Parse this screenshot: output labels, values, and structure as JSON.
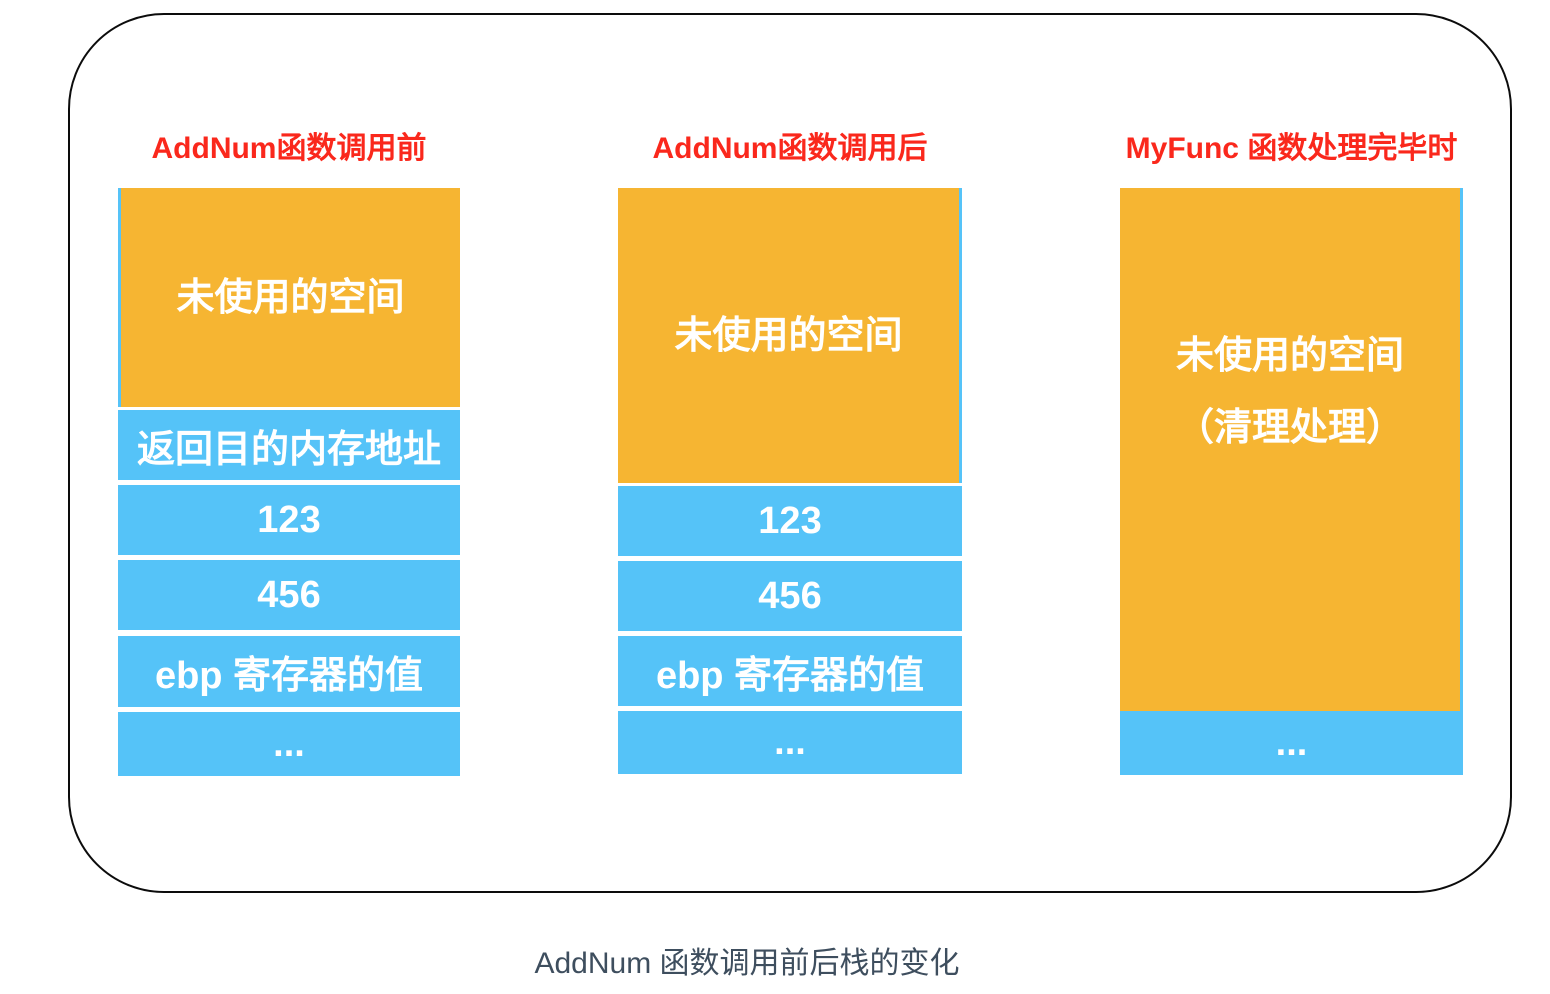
{
  "colors": {
    "orange": "#F6B532",
    "blue": "#55C3F8",
    "red": "#FA281C",
    "caption": "#3E4E5E",
    "frame-border": "#0c0c0c"
  },
  "caption": "AddNum 函数调用前后栈的变化",
  "columns": [
    {
      "title": "AddNum函数调用前",
      "unused_label": "未使用的空间",
      "cells": [
        "返回目的内存地址",
        "123",
        "456",
        "ebp 寄存器的值",
        "..."
      ]
    },
    {
      "title": "AddNum函数调用后",
      "unused_label": "未使用的空间",
      "cells": [
        "123",
        "456",
        "ebp 寄存器的值",
        "..."
      ]
    },
    {
      "title": "MyFunc 函数处理完毕时",
      "unused_label": "未使用的空间",
      "unused_sublabel": "（清理处理）",
      "cells": [
        "..."
      ]
    }
  ]
}
